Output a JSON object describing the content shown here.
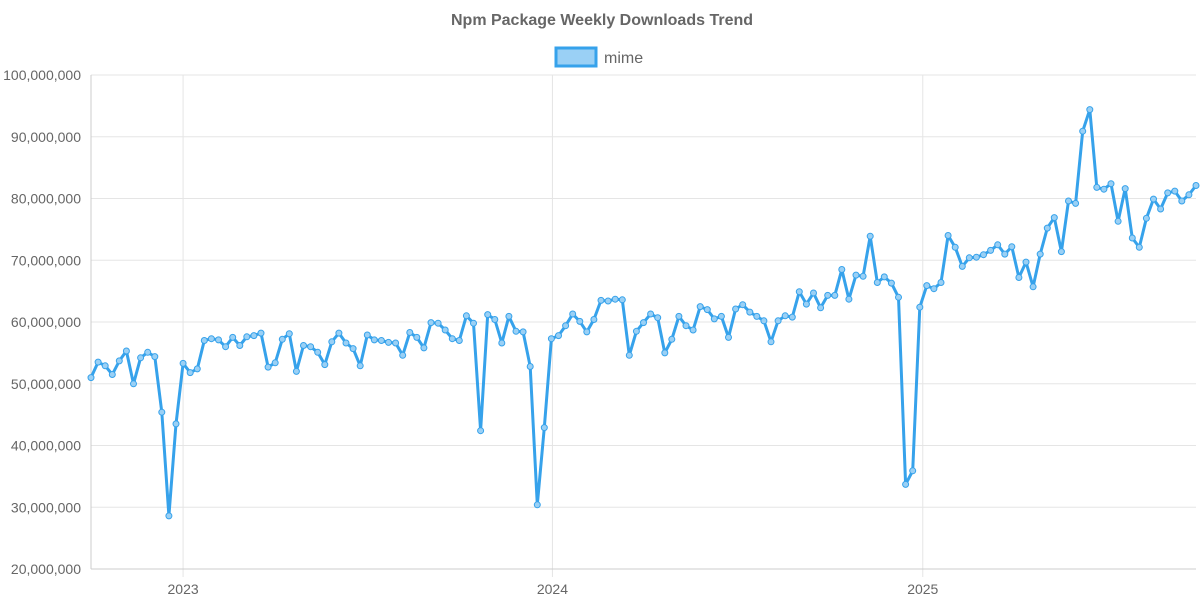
{
  "chart_data": {
    "type": "line",
    "title": "Npm Package Weekly Downloads Trend",
    "series": [
      {
        "name": "mime",
        "color": "#36a2eb",
        "fill": "#9ad0f5",
        "values": [
          51000000,
          53500000,
          52900000,
          51500000,
          53700000,
          55300000,
          50000000,
          54200000,
          55100000,
          54400000,
          45400000,
          28600000,
          43500000,
          53300000,
          51800000,
          52400000,
          57000000,
          57300000,
          57100000,
          56000000,
          57500000,
          56200000,
          57600000,
          57800000,
          58200000,
          52700000,
          53400000,
          57200000,
          58100000,
          52000000,
          56200000,
          56000000,
          55100000,
          53100000,
          56800000,
          58200000,
          56600000,
          55700000,
          52900000,
          57900000,
          57100000,
          57000000,
          56700000,
          56600000,
          54600000,
          58300000,
          57500000,
          55800000,
          59900000,
          59800000,
          58700000,
          57300000,
          57000000,
          61000000,
          59800000,
          42400000,
          61200000,
          60400000,
          56600000,
          60900000,
          58500000,
          58400000,
          52800000,
          30400000,
          42900000,
          57300000,
          57800000,
          59400000,
          61300000,
          60100000,
          58400000,
          60400000,
          63500000,
          63400000,
          63700000,
          63600000,
          54600000,
          58500000,
          59900000,
          61300000,
          60700000,
          55000000,
          57200000,
          60900000,
          59400000,
          58700000,
          62500000,
          62000000,
          60500000,
          60900000,
          57500000,
          62100000,
          62800000,
          61600000,
          60900000,
          60200000,
          56800000,
          60200000,
          61000000,
          60800000,
          64900000,
          62900000,
          64700000,
          62300000,
          64300000,
          64300000,
          68500000,
          63700000,
          67600000,
          67400000,
          73900000,
          66400000,
          67300000,
          66300000,
          64000000,
          33700000,
          35900000,
          62400000,
          65900000,
          65400000,
          66400000,
          74000000,
          72100000,
          69000000,
          70400000,
          70500000,
          70900000,
          71600000,
          72500000,
          71000000,
          72200000,
          67200000,
          69700000,
          65700000,
          71000000,
          75200000,
          76900000,
          71400000,
          79600000,
          79200000,
          90900000,
          94400000,
          81800000,
          81500000,
          82400000,
          76300000,
          81600000,
          73600000,
          72100000,
          76800000,
          79900000,
          78300000,
          80900000,
          81200000,
          79600000,
          80600000,
          82100000
        ]
      }
    ],
    "x_start": "2022-10-02",
    "x_step_days": 7,
    "x_ticks": [
      "2023",
      "2024",
      "2025"
    ],
    "y_ticks": [
      "20,000,000",
      "30,000,000",
      "40,000,000",
      "50,000,000",
      "60,000,000",
      "70,000,000",
      "80,000,000",
      "90,000,000",
      "100,000,000"
    ],
    "ylim": [
      20000000,
      100000000
    ],
    "xlabel": "",
    "ylabel": "",
    "grid": true,
    "legend": "top-center"
  }
}
